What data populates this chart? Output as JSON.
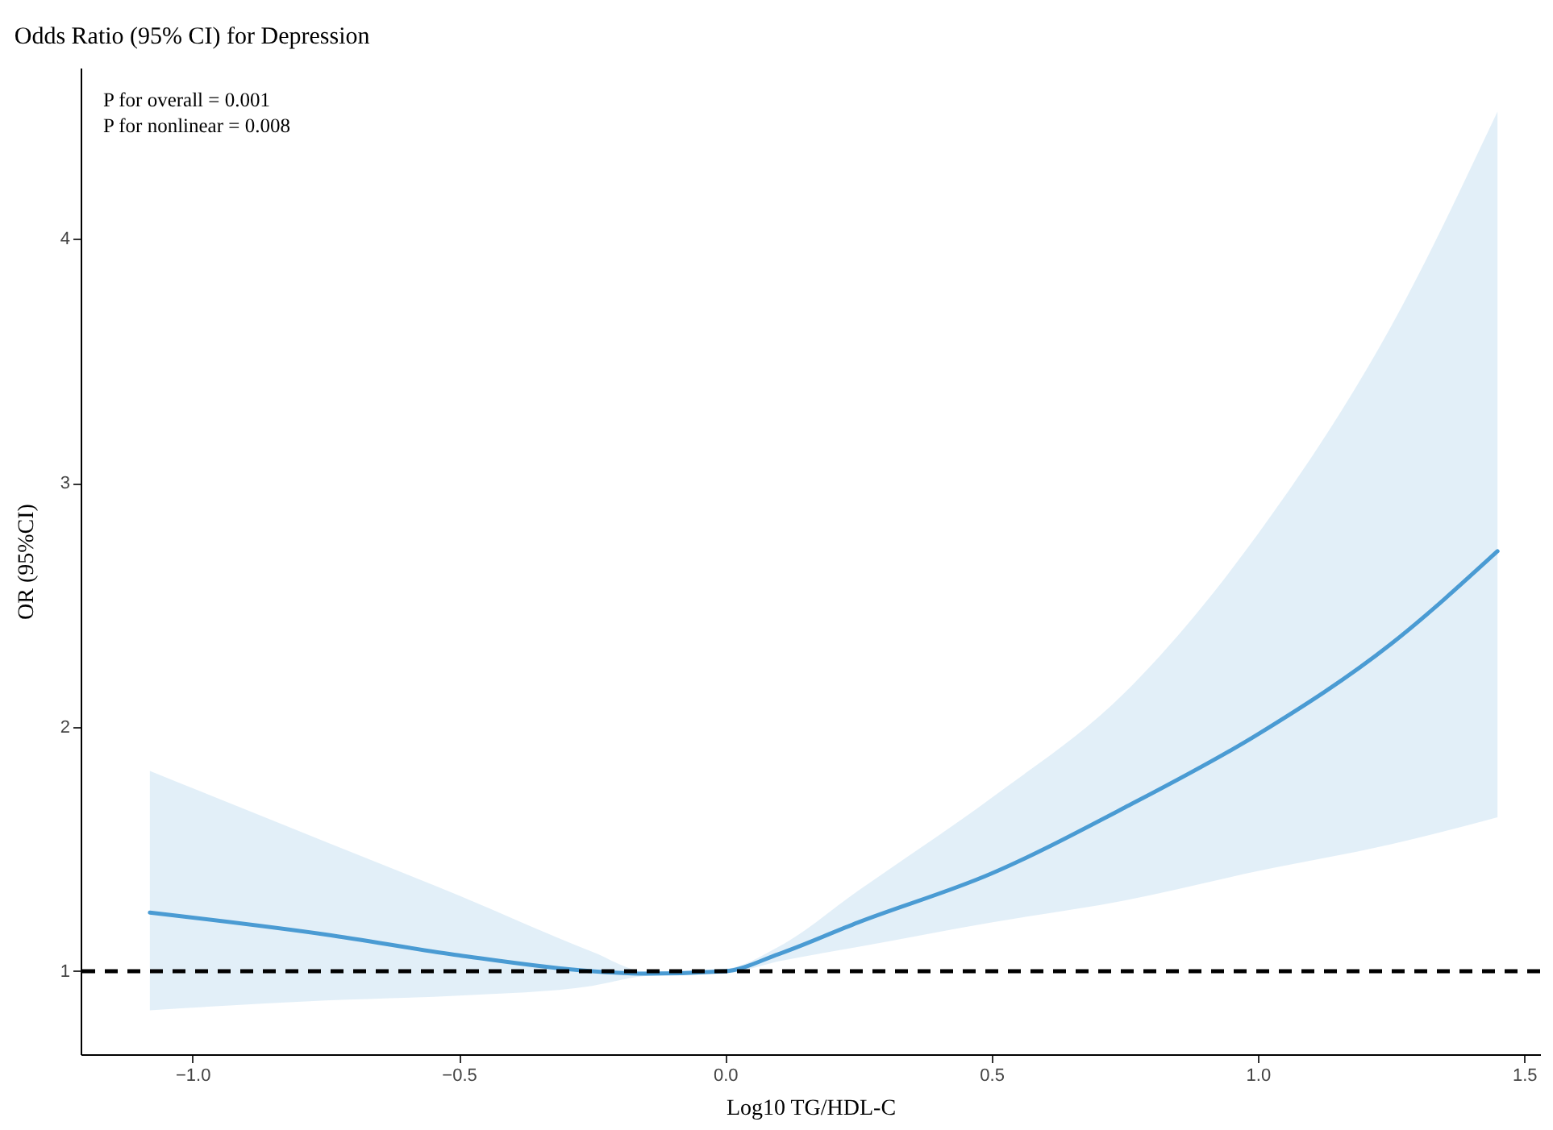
{
  "chart_data": {
    "type": "line",
    "title": "Odds Ratio (95% CI) for Depression",
    "xlabel": "Log10 TG/HDL-C",
    "ylabel": "OR (95%CI)",
    "annotations": [
      "P for overall = 0.001",
      "P for nonlinear = 0.008"
    ],
    "x": [
      -1.08,
      -0.75,
      -0.5,
      -0.25,
      -0.15,
      0,
      0.1,
      0.25,
      0.5,
      0.75,
      1.0,
      1.25,
      1.45
    ],
    "series": [
      {
        "color": "#4a9bd3",
        "values": [
          1.24,
          1.15,
          1.065,
          1.0,
          0.99,
          1.0,
          1.07,
          1.2,
          1.4,
          1.67,
          1.97,
          2.34,
          2.72
        ],
        "lower": [
          0.84,
          0.88,
          0.9,
          0.94,
          0.98,
          0.99,
          1.04,
          1.1,
          1.2,
          1.29,
          1.41,
          1.52,
          1.63
        ],
        "upper": [
          1.82,
          1.53,
          1.31,
          1.08,
          1.0,
          1.01,
          1.1,
          1.33,
          1.71,
          2.14,
          2.79,
          3.64,
          4.52
        ]
      }
    ],
    "xlim": [
      -1.21,
      1.53
    ],
    "xticks": [
      {
        "value": -1,
        "label": "−1.0"
      },
      {
        "value": -0.5,
        "label": "−0.5"
      },
      {
        "value": 0,
        "label": "0.0"
      },
      0.5,
      {
        "value": 1,
        "label": "1.0"
      },
      1.5
    ],
    "ylim": [
      0.66,
      4.7
    ],
    "yticks": [
      1,
      2,
      3,
      4
    ],
    "ref_lines": [
      {
        "axis": "y",
        "value": 1,
        "color": "#000000",
        "line_style": "dashed"
      }
    ],
    "grid": false,
    "marker": "none",
    "line_style": "solid"
  }
}
